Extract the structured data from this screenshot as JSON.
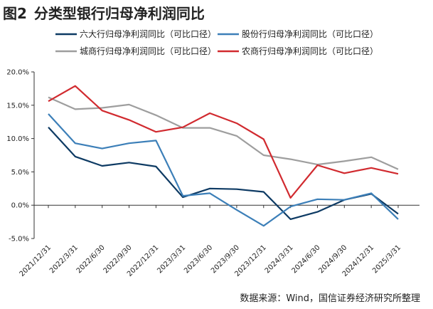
{
  "figure": {
    "number": "图2",
    "title": "分类型银行归母净利润同比",
    "source": "数据来源：Wind，国信证券经济研究所整理"
  },
  "chart_data": {
    "type": "line",
    "categories": [
      "2021/12/31",
      "2022/3/31",
      "2022/6/30",
      "2022/9/30",
      "2022/12/31",
      "2023/3/31",
      "2023/6/30",
      "2023/9/30",
      "2023/12/31",
      "2024/3/31",
      "2024/6/30",
      "2024/9/30",
      "2024/12/31",
      "2025/3/31"
    ],
    "ylim": [
      -5,
      20
    ],
    "yticks": [
      "-5.0%",
      "0.0%",
      "5.0%",
      "10.0%",
      "15.0%",
      "20.0%"
    ],
    "ytick_values": [
      -5,
      0,
      5,
      10,
      15,
      20
    ],
    "legend_position": "top",
    "grid": false,
    "series": [
      {
        "name": "六大行归母净利润同比（可比口径）",
        "color": "#0d3a63",
        "values": [
          11.7,
          7.3,
          5.9,
          6.4,
          5.8,
          1.2,
          2.5,
          2.4,
          2.0,
          -2.1,
          -1.0,
          0.8,
          1.7,
          -1.3
        ]
      },
      {
        "name": "股份行归母净利润同比（可比口径）",
        "color": "#3c7fb8",
        "values": [
          13.7,
          9.3,
          8.5,
          9.3,
          9.7,
          1.4,
          1.8,
          -0.7,
          -3.1,
          -0.2,
          0.9,
          0.8,
          1.8,
          -2.1
        ]
      },
      {
        "name": "城商行归母净利润同比（可比口径）",
        "color": "#9e9e9e",
        "values": [
          16.2,
          14.4,
          14.6,
          15.1,
          13.5,
          11.6,
          11.6,
          10.4,
          7.5,
          6.9,
          6.1,
          6.6,
          7.2,
          5.4
        ]
      },
      {
        "name": "农商行归母净利润同比（可比口径）",
        "color": "#d12a2f",
        "values": [
          15.6,
          17.9,
          14.2,
          12.8,
          11.0,
          11.7,
          13.8,
          12.3,
          9.9,
          1.1,
          6.0,
          4.8,
          5.6,
          4.7
        ]
      }
    ]
  }
}
